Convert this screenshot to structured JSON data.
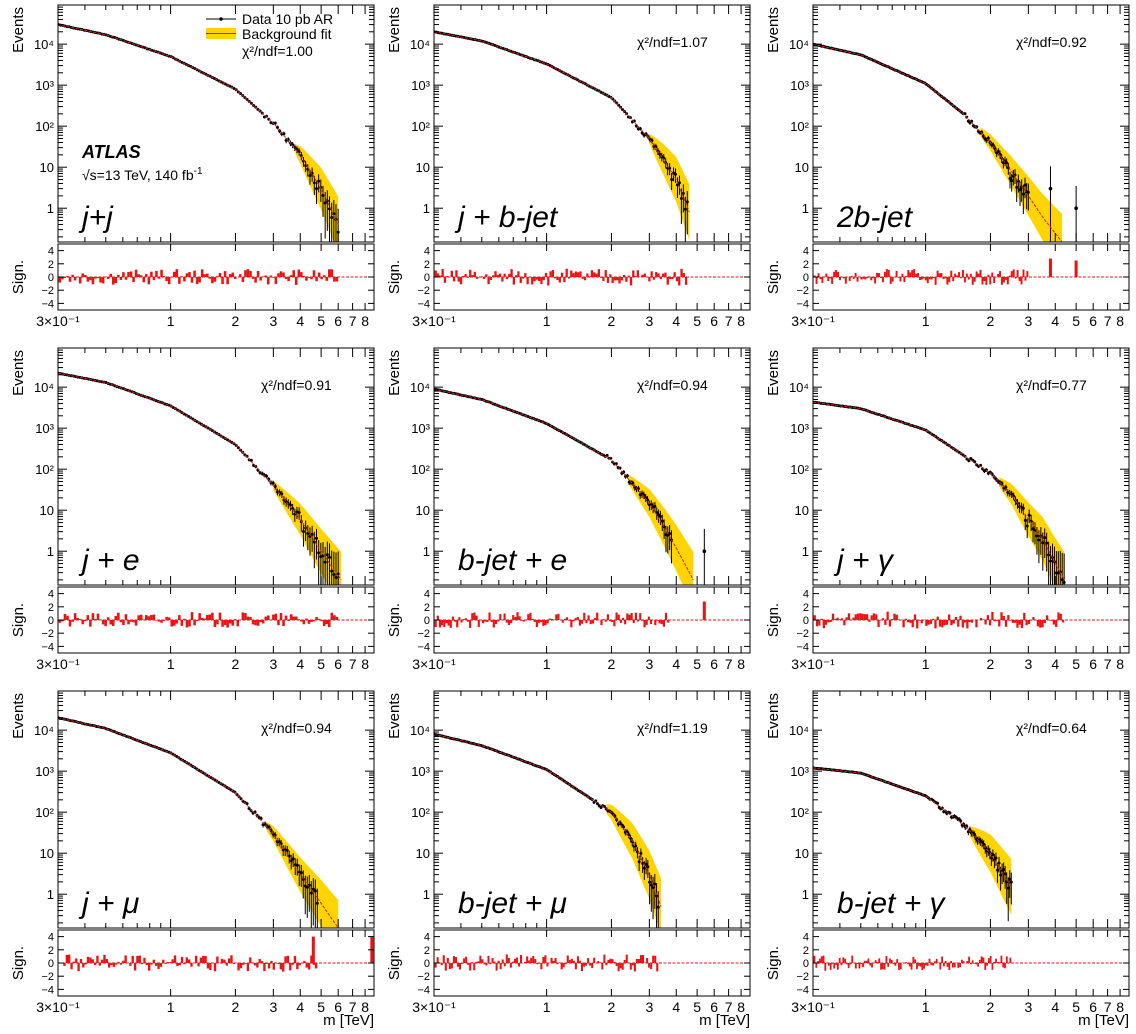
{
  "figure": {
    "experiment": "ATLAS",
    "energy_text": "√s=13 TeV,  140 fb",
    "lumi_exp": "-1",
    "legend": {
      "data_label": "Data 10 pb AR",
      "fit_label": "Background fit",
      "data_color": "#000000",
      "fit_line_color": "#d62020",
      "band_color": "#ffd400"
    },
    "y_axis_label": "Events",
    "ratio_axis_label": "Sign.",
    "x_axis_label": "m [TeV]",
    "bar_color": "#ee1111"
  },
  "chart_data": [
    {
      "type": "line",
      "channel": "j+j",
      "chi2": "χ²/ndf=1.00",
      "xscale": "log",
      "xlim": [
        0.3,
        8.8
      ],
      "yscale": "log",
      "ylim": [
        0.15,
        90000
      ],
      "sig_lim": [
        -5,
        5
      ],
      "x_ticks": [
        "3×10⁻¹",
        "1",
        "2",
        "3",
        "4",
        "5",
        "6",
        "7",
        "8"
      ],
      "x_tick_values": [
        0.3,
        1,
        2,
        3,
        4,
        5,
        6,
        7,
        8
      ],
      "y_ticks": [
        "1",
        "10",
        "10²",
        "10³",
        "10⁴"
      ],
      "y_tick_values": [
        1,
        10,
        100,
        1000,
        10000
      ],
      "sig_ticks": [
        "4",
        "2",
        "0",
        "−2",
        "−4"
      ],
      "sig_tick_values": [
        4,
        2,
        0,
        -2,
        -4
      ],
      "fit": {
        "x": [
          0.3,
          0.5,
          1.0,
          2.0,
          3.0,
          4.0,
          5.0,
          6.0
        ],
        "y": [
          30000,
          17000,
          5000,
          800,
          120,
          20,
          3,
          0.4
        ]
      },
      "data_last_x": 6.0,
      "band_start_x": 3.8,
      "outliers": [],
      "sig_outliers": [],
      "sig_amp": 1.2,
      "has_x_label": false
    },
    {
      "type": "line",
      "channel": "j + b-jet",
      "chi2": "χ²/ndf=1.07",
      "xscale": "log",
      "xlim": [
        0.3,
        8.8
      ],
      "yscale": "log",
      "ylim": [
        0.15,
        90000
      ],
      "sig_lim": [
        -5,
        5
      ],
      "x_ticks": [
        "3×10⁻¹",
        "1",
        "2",
        "3",
        "4",
        "5",
        "6",
        "7",
        "8"
      ],
      "x_tick_values": [
        0.3,
        1,
        2,
        3,
        4,
        5,
        6,
        7,
        8
      ],
      "y_ticks": [
        "1",
        "10",
        "10²",
        "10³",
        "10⁴"
      ],
      "y_tick_values": [
        1,
        10,
        100,
        1000,
        10000
      ],
      "sig_ticks": [
        "4",
        "2",
        "0",
        "−2",
        "−4"
      ],
      "sig_tick_values": [
        4,
        2,
        0,
        -2,
        -4
      ],
      "fit": {
        "x": [
          0.3,
          0.5,
          1.0,
          2.0,
          3.0,
          3.5,
          4.0,
          4.6
        ],
        "y": [
          20000,
          12000,
          3300,
          500,
          50,
          15,
          5,
          0.8
        ]
      },
      "data_last_x": 4.5,
      "band_start_x": 3.0,
      "outliers": [],
      "sig_outliers": [],
      "sig_amp": 1.3,
      "has_x_label": false
    },
    {
      "type": "line",
      "channel": "2b-jet",
      "chi2": "χ²/ndf=0.92",
      "xscale": "log",
      "xlim": [
        0.3,
        8.8
      ],
      "yscale": "log",
      "ylim": [
        0.15,
        90000
      ],
      "sig_lim": [
        -5,
        5
      ],
      "x_ticks": [
        "3×10⁻¹",
        "1",
        "2",
        "3",
        "4",
        "5",
        "6",
        "7",
        "8"
      ],
      "x_tick_values": [
        0.3,
        1,
        2,
        3,
        4,
        5,
        6,
        7,
        8
      ],
      "y_ticks": [
        "1",
        "10",
        "10²",
        "10³",
        "10⁴"
      ],
      "y_tick_values": [
        1,
        10,
        100,
        1000,
        10000
      ],
      "sig_ticks": [
        "4",
        "2",
        "0",
        "−2",
        "−4"
      ],
      "sig_tick_values": [
        4,
        2,
        0,
        -2,
        -4
      ],
      "fit": {
        "x": [
          0.3,
          0.5,
          1.0,
          1.5,
          2.0,
          2.5,
          3.0,
          3.5,
          4.3
        ],
        "y": [
          10000,
          5500,
          1100,
          200,
          40,
          8,
          2,
          0.6,
          0.15
        ]
      },
      "data_last_x": 3.0,
      "band_start_x": 1.8,
      "outliers": [
        {
          "x": 3.8,
          "y": 3
        },
        {
          "x": 5.0,
          "y": 1
        }
      ],
      "sig_outliers": [
        {
          "x": 3.8,
          "y": 2.8
        },
        {
          "x": 5.0,
          "y": 2.5
        }
      ],
      "sig_amp": 1.2,
      "has_x_label": false
    },
    {
      "type": "line",
      "channel": "j + e",
      "chi2": "χ²/ndf=0.91",
      "xscale": "log",
      "xlim": [
        0.3,
        8.8
      ],
      "yscale": "log",
      "ylim": [
        0.15,
        90000
      ],
      "sig_lim": [
        -5,
        5
      ],
      "x_ticks": [
        "3×10⁻¹",
        "1",
        "2",
        "3",
        "4",
        "5",
        "6",
        "7",
        "8"
      ],
      "x_tick_values": [
        0.3,
        1,
        2,
        3,
        4,
        5,
        6,
        7,
        8
      ],
      "y_ticks": [
        "1",
        "10",
        "10²",
        "10³",
        "10⁴"
      ],
      "y_tick_values": [
        1,
        10,
        100,
        1000,
        10000
      ],
      "sig_ticks": [
        "4",
        "2",
        "0",
        "−2",
        "−4"
      ],
      "sig_tick_values": [
        4,
        2,
        0,
        -2,
        -4
      ],
      "fit": {
        "x": [
          0.3,
          0.5,
          1.0,
          2.0,
          3.0,
          4.0,
          5.0,
          6.2
        ],
        "y": [
          22000,
          13000,
          3500,
          400,
          40,
          6,
          1,
          0.2
        ]
      },
      "data_last_x": 6.0,
      "band_start_x": 3.0,
      "outliers": [],
      "sig_outliers": [],
      "sig_amp": 1.2,
      "has_x_label": false
    },
    {
      "type": "line",
      "channel": "b-jet + e",
      "chi2": "χ²/ndf=0.94",
      "xscale": "log",
      "xlim": [
        0.3,
        8.8
      ],
      "yscale": "log",
      "ylim": [
        0.15,
        90000
      ],
      "sig_lim": [
        -5,
        5
      ],
      "x_ticks": [
        "3×10⁻¹",
        "1",
        "2",
        "3",
        "4",
        "5",
        "6",
        "7",
        "8"
      ],
      "x_tick_values": [
        0.3,
        1,
        2,
        3,
        4,
        5,
        6,
        7,
        8
      ],
      "y_ticks": [
        "1",
        "10",
        "10²",
        "10³",
        "10⁴"
      ],
      "y_tick_values": [
        1,
        10,
        100,
        1000,
        10000
      ],
      "sig_ticks": [
        "4",
        "2",
        "0",
        "−2",
        "−4"
      ],
      "sig_tick_values": [
        4,
        2,
        0,
        -2,
        -4
      ],
      "fit": {
        "x": [
          0.3,
          0.5,
          1.0,
          2.0,
          3.0,
          3.5,
          4.0,
          4.8
        ],
        "y": [
          9000,
          5000,
          1300,
          170,
          15,
          4,
          1.2,
          0.2
        ]
      },
      "data_last_x": 3.8,
      "band_start_x": 2.4,
      "outliers": [
        {
          "x": 5.4,
          "y": 1
        }
      ],
      "sig_outliers": [
        {
          "x": 5.4,
          "y": 2.8
        }
      ],
      "sig_amp": 1.2,
      "has_x_label": false
    },
    {
      "type": "line",
      "channel": "j + γ",
      "chi2": "χ²/ndf=0.77",
      "xscale": "log",
      "xlim": [
        0.3,
        8.8
      ],
      "yscale": "log",
      "ylim": [
        0.15,
        90000
      ],
      "sig_lim": [
        -5,
        5
      ],
      "x_ticks": [
        "3×10⁻¹",
        "1",
        "2",
        "3",
        "4",
        "5",
        "6",
        "7",
        "8"
      ],
      "x_tick_values": [
        0.3,
        1,
        2,
        3,
        4,
        5,
        6,
        7,
        8
      ],
      "y_ticks": [
        "1",
        "10",
        "10²",
        "10³",
        "10⁴"
      ],
      "y_tick_values": [
        1,
        10,
        100,
        1000,
        10000
      ],
      "sig_ticks": [
        "4",
        "2",
        "0",
        "−2",
        "−4"
      ],
      "sig_tick_values": [
        4,
        2,
        0,
        -2,
        -4
      ],
      "fit": {
        "x": [
          0.3,
          0.5,
          1.0,
          2.0,
          2.5,
          3.0,
          3.5,
          4.0,
          4.4
        ],
        "y": [
          4300,
          3000,
          900,
          80,
          25,
          6,
          2,
          0.5,
          0.2
        ]
      },
      "data_last_x": 4.4,
      "band_start_x": 2.2,
      "outliers": [],
      "sig_outliers": [],
      "sig_amp": 1.3,
      "has_x_label": false
    },
    {
      "type": "line",
      "channel": "j + μ",
      "chi2": "χ²/ndf=0.94",
      "xscale": "log",
      "xlim": [
        0.3,
        8.8
      ],
      "yscale": "log",
      "ylim": [
        0.15,
        90000
      ],
      "sig_lim": [
        -5,
        5
      ],
      "x_ticks": [
        "3×10⁻¹",
        "1",
        "2",
        "3",
        "4",
        "5",
        "6",
        "7",
        "8"
      ],
      "x_tick_values": [
        0.3,
        1,
        2,
        3,
        4,
        5,
        6,
        7,
        8
      ],
      "y_ticks": [
        "1",
        "10",
        "10²",
        "10³",
        "10⁴"
      ],
      "y_tick_values": [
        1,
        10,
        100,
        1000,
        10000
      ],
      "sig_ticks": [
        "4",
        "2",
        "0",
        "−2",
        "−4"
      ],
      "sig_tick_values": [
        4,
        2,
        0,
        -2,
        -4
      ],
      "fit": {
        "x": [
          0.3,
          0.5,
          1.0,
          2.0,
          3.0,
          4.0,
          5.0,
          6.0
        ],
        "y": [
          20000,
          11000,
          2800,
          300,
          30,
          3,
          0.6,
          0.15
        ]
      },
      "data_last_x": 4.8,
      "band_start_x": 2.8,
      "outliers": [],
      "sig_outliers": [
        {
          "x": 4.6,
          "y": 4
        },
        {
          "x": 8.6,
          "y": 4
        }
      ],
      "sig_amp": 1.3,
      "has_x_label": true
    },
    {
      "type": "line",
      "channel": "b-jet + μ",
      "chi2": "χ²/ndf=1.19",
      "xscale": "log",
      "xlim": [
        0.3,
        8.8
      ],
      "yscale": "log",
      "ylim": [
        0.15,
        90000
      ],
      "sig_lim": [
        -5,
        5
      ],
      "x_ticks": [
        "3×10⁻¹",
        "1",
        "2",
        "3",
        "4",
        "5",
        "6",
        "7",
        "8"
      ],
      "x_tick_values": [
        0.3,
        1,
        2,
        3,
        4,
        5,
        6,
        7,
        8
      ],
      "y_ticks": [
        "1",
        "10",
        "10²",
        "10³",
        "10⁴"
      ],
      "y_tick_values": [
        1,
        10,
        100,
        1000,
        10000
      ],
      "sig_ticks": [
        "4",
        "2",
        "0",
        "−2",
        "−4"
      ],
      "sig_tick_values": [
        4,
        2,
        0,
        -2,
        -4
      ],
      "fit": {
        "x": [
          0.3,
          0.5,
          1.0,
          2.0,
          2.5,
          3.0,
          3.4
        ],
        "y": [
          8000,
          4200,
          1100,
          100,
          20,
          3,
          0.5
        ]
      },
      "data_last_x": 3.3,
      "band_start_x": 1.9,
      "outliers": [],
      "sig_outliers": [],
      "sig_amp": 1.3,
      "has_x_label": true
    },
    {
      "type": "line",
      "channel": "b-jet + γ",
      "chi2": "χ²/ndf=0.64",
      "xscale": "log",
      "xlim": [
        0.3,
        8.8
      ],
      "yscale": "log",
      "ylim": [
        0.15,
        90000
      ],
      "sig_lim": [
        -5,
        5
      ],
      "x_ticks": [
        "3×10⁻¹",
        "1",
        "2",
        "3",
        "4",
        "5",
        "6",
        "7",
        "8"
      ],
      "x_tick_values": [
        0.3,
        1,
        2,
        3,
        4,
        5,
        6,
        7,
        8
      ],
      "y_ticks": [
        "1",
        "10",
        "10²",
        "10³",
        "10⁴"
      ],
      "y_tick_values": [
        1,
        10,
        100,
        1000,
        10000
      ],
      "sig_ticks": [
        "4",
        "2",
        "0",
        "−2",
        "−4"
      ],
      "sig_tick_values": [
        4,
        2,
        0,
        -2,
        -4
      ],
      "fit": {
        "x": [
          0.3,
          0.5,
          1.0,
          1.5,
          2.0,
          2.5
        ],
        "y": [
          1200,
          900,
          250,
          50,
          10,
          1.5
        ]
      },
      "data_last_x": 2.5,
      "band_start_x": 1.6,
      "outliers": [],
      "sig_outliers": [],
      "sig_amp": 1.2,
      "has_x_label": true
    }
  ]
}
